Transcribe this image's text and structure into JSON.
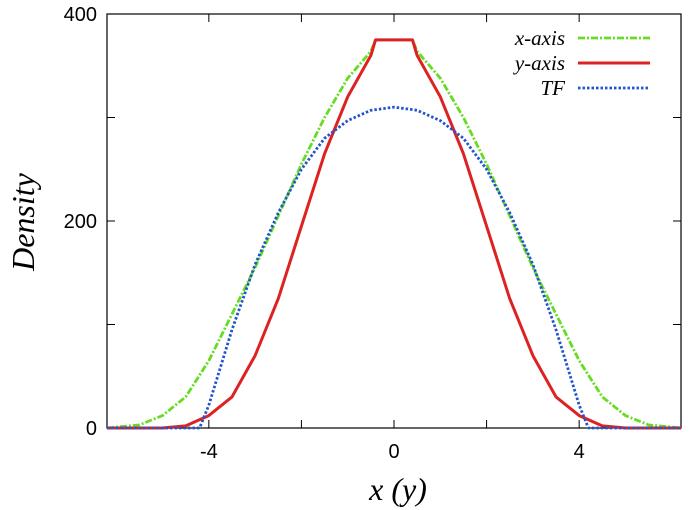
{
  "chart_data": {
    "type": "line",
    "xlabel": "x (y)",
    "ylabel": "Density",
    "xlim": [
      -6.2,
      6.2
    ],
    "ylim": [
      0,
      400
    ],
    "xticks": [
      -4,
      0,
      4
    ],
    "xtick_labels": [
      "-4",
      "0",
      "4"
    ],
    "yticks": [
      0,
      200,
      400
    ],
    "ytick_labels": [
      "0",
      "200",
      "400"
    ],
    "grid": false,
    "legend": "top-right",
    "series": [
      {
        "name": "x-axis",
        "color": "#66dd22",
        "style": "dash-dot",
        "x": [
          -6.2,
          -5.5,
          -5.0,
          -4.5,
          -4.0,
          -3.5,
          -3.0,
          -2.5,
          -2.0,
          -1.5,
          -1.0,
          -0.5,
          -0.4,
          0.0,
          0.4,
          0.5,
          1.0,
          1.5,
          2.0,
          2.5,
          3.0,
          3.5,
          4.0,
          4.5,
          5.0,
          5.5,
          6.2
        ],
        "y": [
          0,
          3,
          12,
          30,
          65,
          110,
          155,
          205,
          255,
          300,
          338,
          364,
          375,
          375,
          375,
          364,
          338,
          300,
          255,
          205,
          155,
          110,
          65,
          30,
          12,
          3,
          0
        ]
      },
      {
        "name": "y-axis",
        "color": "#dd2222",
        "style": "solid",
        "x": [
          -6.2,
          -5.0,
          -4.5,
          -4.0,
          -3.5,
          -3.0,
          -2.5,
          -2.0,
          -1.5,
          -1.0,
          -0.5,
          -0.4,
          0.0,
          0.4,
          0.5,
          1.0,
          1.5,
          2.0,
          2.5,
          3.0,
          3.5,
          4.0,
          4.5,
          5.0,
          6.2
        ],
        "y": [
          0,
          0,
          2,
          12,
          30,
          70,
          125,
          195,
          265,
          320,
          360,
          375,
          375,
          375,
          360,
          320,
          265,
          195,
          125,
          70,
          30,
          12,
          2,
          0,
          0
        ]
      },
      {
        "name": "TF",
        "color": "#2255cc",
        "style": "dotted",
        "x": [
          -6.2,
          -4.2,
          -4.0,
          -3.5,
          -3.0,
          -2.5,
          -2.0,
          -1.5,
          -1.0,
          -0.5,
          0.0,
          0.5,
          1.0,
          1.5,
          2.0,
          2.5,
          3.0,
          3.5,
          4.0,
          4.2,
          6.2
        ],
        "y": [
          0,
          0,
          22,
          95,
          158,
          208,
          250,
          280,
          297,
          307,
          310,
          307,
          297,
          280,
          250,
          208,
          158,
          95,
          22,
          0,
          0
        ]
      }
    ]
  }
}
